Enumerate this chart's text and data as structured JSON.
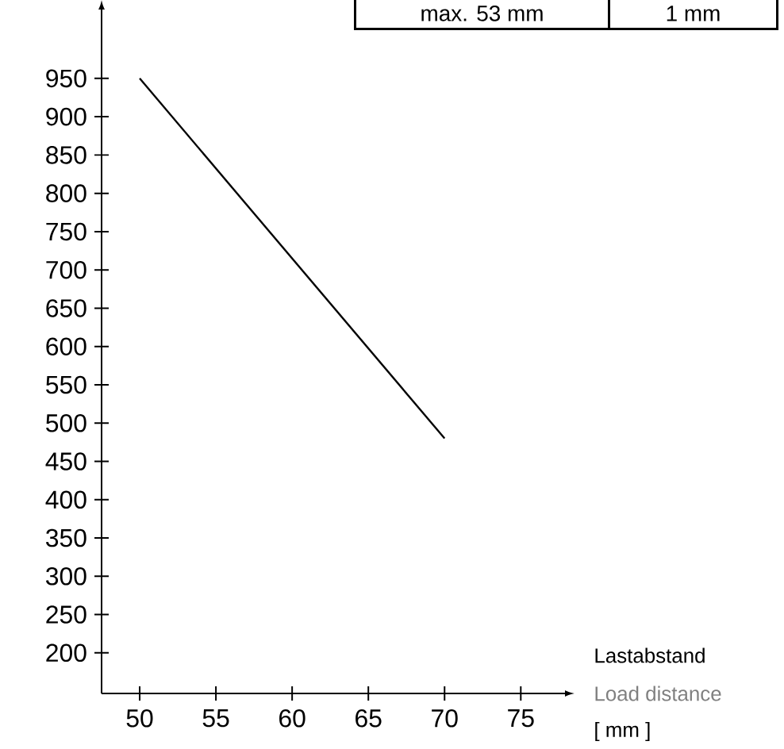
{
  "chart_data": {
    "type": "line",
    "x": [
      50,
      70
    ],
    "values": [
      950,
      480
    ],
    "color": "#000000",
    "xlim": [
      47.5,
      77.9
    ],
    "ylim": [
      147,
      1040
    ],
    "xticks": [
      50,
      55,
      60,
      65,
      70,
      75
    ],
    "yticks": [
      200,
      250,
      300,
      350,
      400,
      450,
      500,
      550,
      600,
      650,
      700,
      750,
      800,
      850,
      900,
      950
    ],
    "xlabel": "Lastabstand",
    "annotations": [
      "Load distance",
      "[ mm ]",
      "max. 53 mm",
      "1 mm"
    ]
  }
}
